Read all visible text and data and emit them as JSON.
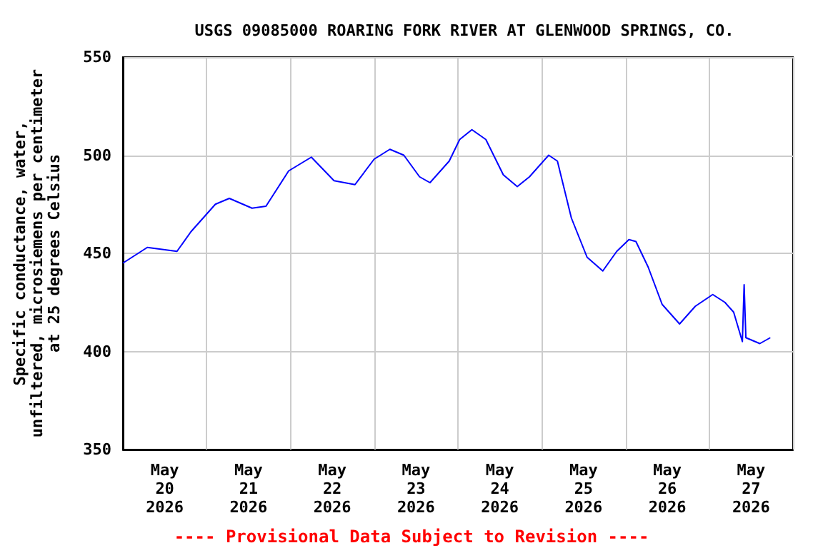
{
  "chart_data": {
    "type": "line",
    "title": "USGS 09085000 ROARING FORK RIVER AT GLENWOOD SPRINGS, CO.",
    "ylabel": "Specific conductance, water,\nunfiltered, microsiemens per centimeter\nat 25 degrees Celsius",
    "annotations": [
      "---- Provisional Data Subject to Revision ----"
    ],
    "x": [
      "2026-05-20T00:00",
      "2026-05-20T07:00",
      "2026-05-20T15:30",
      "2026-05-20T19:30",
      "2026-05-21T02:30",
      "2026-05-21T06:30",
      "2026-05-21T13:00",
      "2026-05-21T17:00",
      "2026-05-21T23:30",
      "2026-05-22T06:00",
      "2026-05-22T12:30",
      "2026-05-22T18:30",
      "2026-05-23T00:00",
      "2026-05-23T04:30",
      "2026-05-23T08:30",
      "2026-05-23T13:00",
      "2026-05-23T16:00",
      "2026-05-23T21:30",
      "2026-05-24T00:30",
      "2026-05-24T04:00",
      "2026-05-24T08:00",
      "2026-05-24T13:00",
      "2026-05-24T17:00",
      "2026-05-24T20:30",
      "2026-05-25T02:00",
      "2026-05-25T04:30",
      "2026-05-25T08:30",
      "2026-05-25T13:00",
      "2026-05-25T17:30",
      "2026-05-25T21:30",
      "2026-05-26T01:00",
      "2026-05-26T03:00",
      "2026-05-26T06:30",
      "2026-05-26T10:30",
      "2026-05-26T15:30",
      "2026-05-26T20:00",
      "2026-05-27T01:00",
      "2026-05-27T04:30",
      "2026-05-27T07:00",
      "2026-05-27T08:30",
      "2026-05-27T09:30",
      "2026-05-27T10:00",
      "2026-05-27T10:30",
      "2026-05-27T14:30",
      "2026-05-27T17:30"
    ],
    "series": [
      {
        "color": "#0000ff",
        "values": [
          445,
          453,
          451,
          461,
          475,
          478,
          473,
          474,
          492,
          499,
          487,
          485,
          498,
          503,
          500,
          489,
          486,
          497,
          508,
          513,
          508,
          490,
          484,
          489,
          500,
          497,
          468,
          448,
          441,
          451,
          457,
          456,
          443,
          424,
          414,
          423,
          429,
          425,
          420,
          411,
          405,
          434,
          407,
          404,
          407
        ]
      }
    ],
    "xlim": [
      "2026-05-20T00:00",
      "2026-05-28T00:00"
    ],
    "xticks": [
      {
        "value": "2026-05-20T00:00",
        "label": null
      },
      {
        "value": "2026-05-20T12:00",
        "label": "May\n20\n2026"
      },
      {
        "value": "2026-05-21T00:00",
        "label": null
      },
      {
        "value": "2026-05-21T12:00",
        "label": "May\n21\n2026"
      },
      {
        "value": "2026-05-22T00:00",
        "label": null
      },
      {
        "value": "2026-05-22T12:00",
        "label": "May\n22\n2026"
      },
      {
        "value": "2026-05-23T00:00",
        "label": null
      },
      {
        "value": "2026-05-23T12:00",
        "label": "May\n23\n2026"
      },
      {
        "value": "2026-05-24T00:00",
        "label": null
      },
      {
        "value": "2026-05-24T12:00",
        "label": "May\n24\n2026"
      },
      {
        "value": "2026-05-25T00:00",
        "label": null
      },
      {
        "value": "2026-05-25T12:00",
        "label": "May\n25\n2026"
      },
      {
        "value": "2026-05-26T00:00",
        "label": null
      },
      {
        "value": "2026-05-26T12:00",
        "label": "May\n26\n2026"
      },
      {
        "value": "2026-05-27T00:00",
        "label": null
      },
      {
        "value": "2026-05-27T12:00",
        "label": "May\n27\n2026"
      },
      {
        "value": "2026-05-28T00:00",
        "label": null
      }
    ],
    "ylim": [
      350,
      550
    ],
    "yticks": [
      350,
      400,
      450,
      500,
      550
    ],
    "grid": true,
    "marker": "none",
    "line_style": "solid"
  }
}
